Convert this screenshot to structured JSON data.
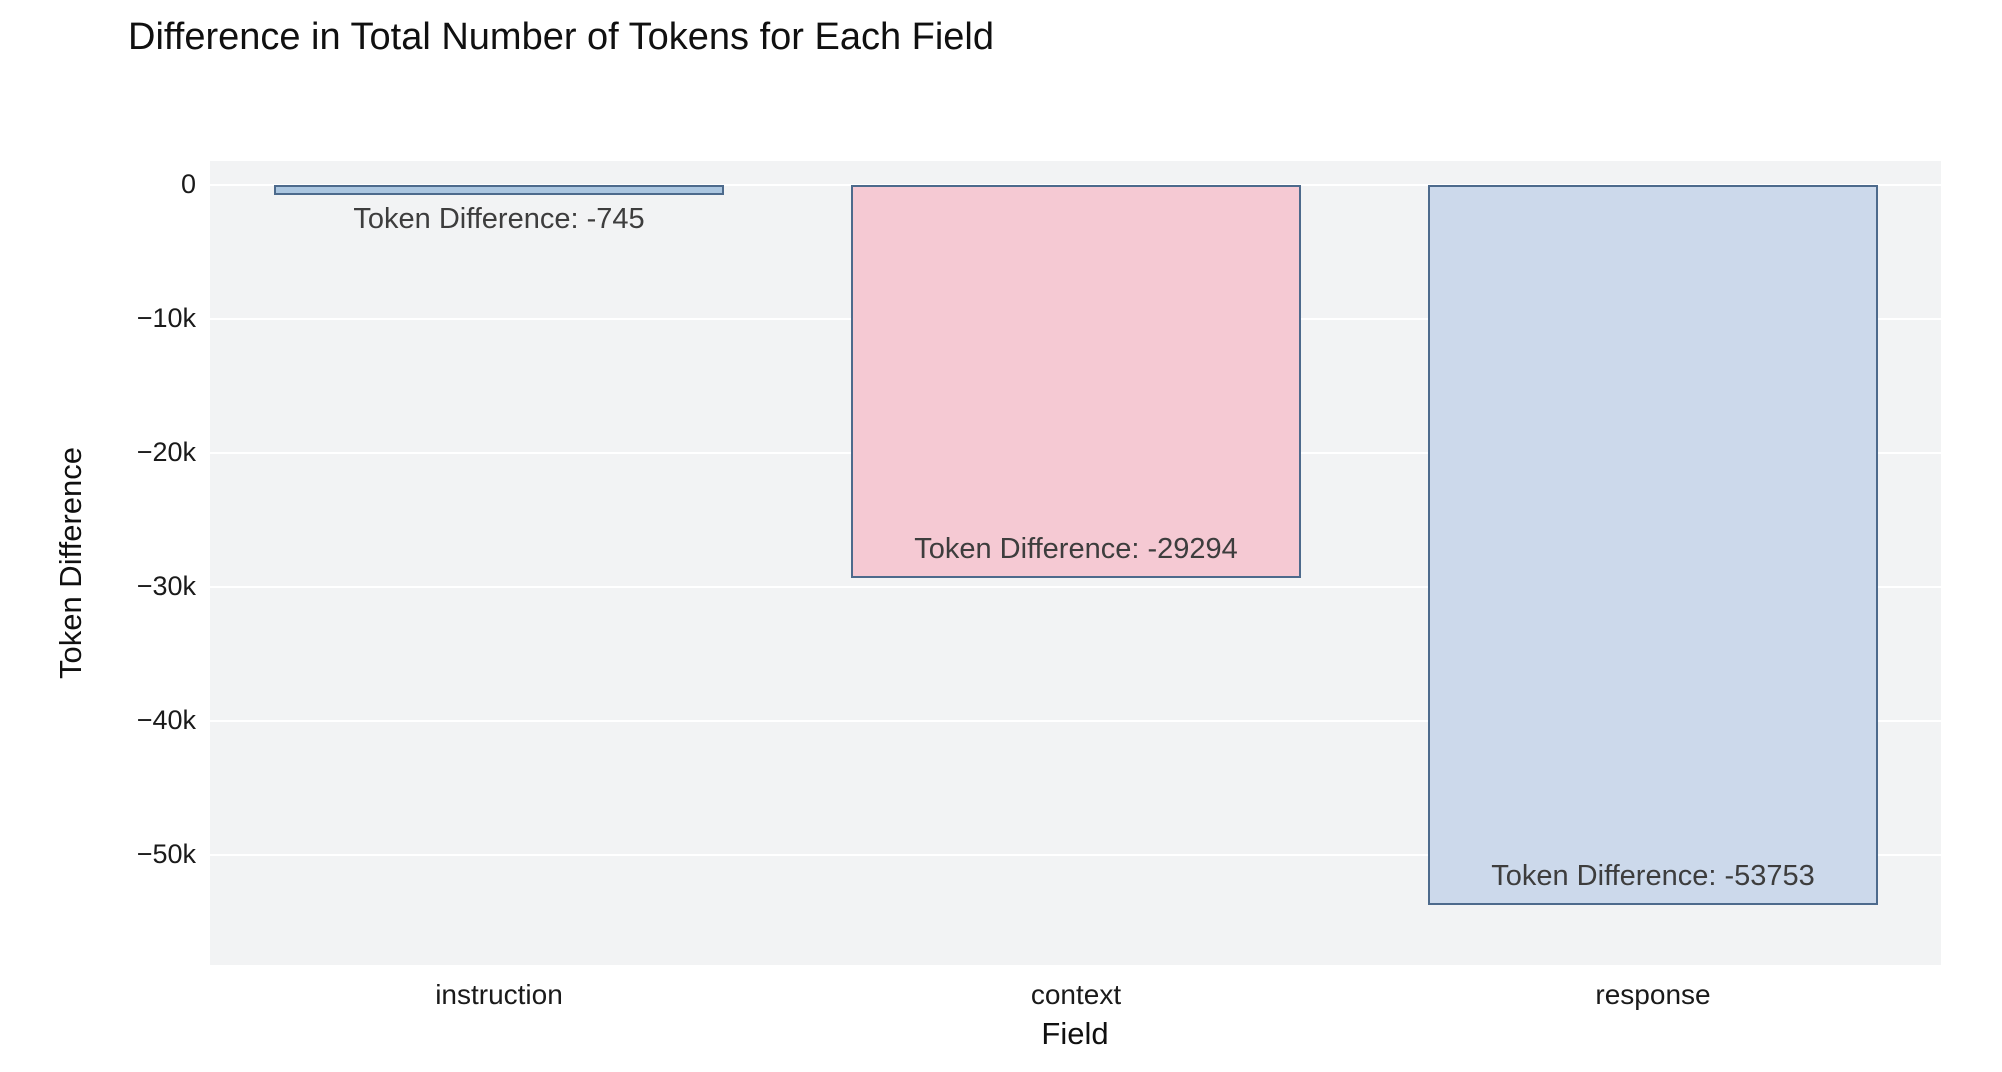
{
  "chart_data": {
    "type": "bar",
    "title": "Difference in Total Number of Tokens for Each Field",
    "xlabel": "Field",
    "ylabel": "Token Difference",
    "categories": [
      "instruction",
      "context",
      "response"
    ],
    "values": [
      -745,
      -29294,
      -53753
    ],
    "bar_labels": [
      "Token Difference: -745",
      "Token Difference: -29294",
      "Token Difference: -53753"
    ],
    "bar_fills": [
      "#abc6e0",
      "#f5c9d3",
      "#ccd9eb"
    ],
    "bar_strokes": [
      "#4d6a8c",
      "#4d6a8c",
      "#4d6a8c"
    ],
    "ylim": [
      -58200,
      1800
    ],
    "yticks": [
      0,
      -10000,
      -20000,
      -30000,
      -40000,
      -50000
    ],
    "ytick_labels": [
      "0",
      "−10k",
      "−20k",
      "−30k",
      "−40k",
      "−50k"
    ],
    "grid": true,
    "legend": "none",
    "plot_bg": "#f2f3f4",
    "grid_color": "#ffffff",
    "value_label_color": "#3d3d3d"
  }
}
